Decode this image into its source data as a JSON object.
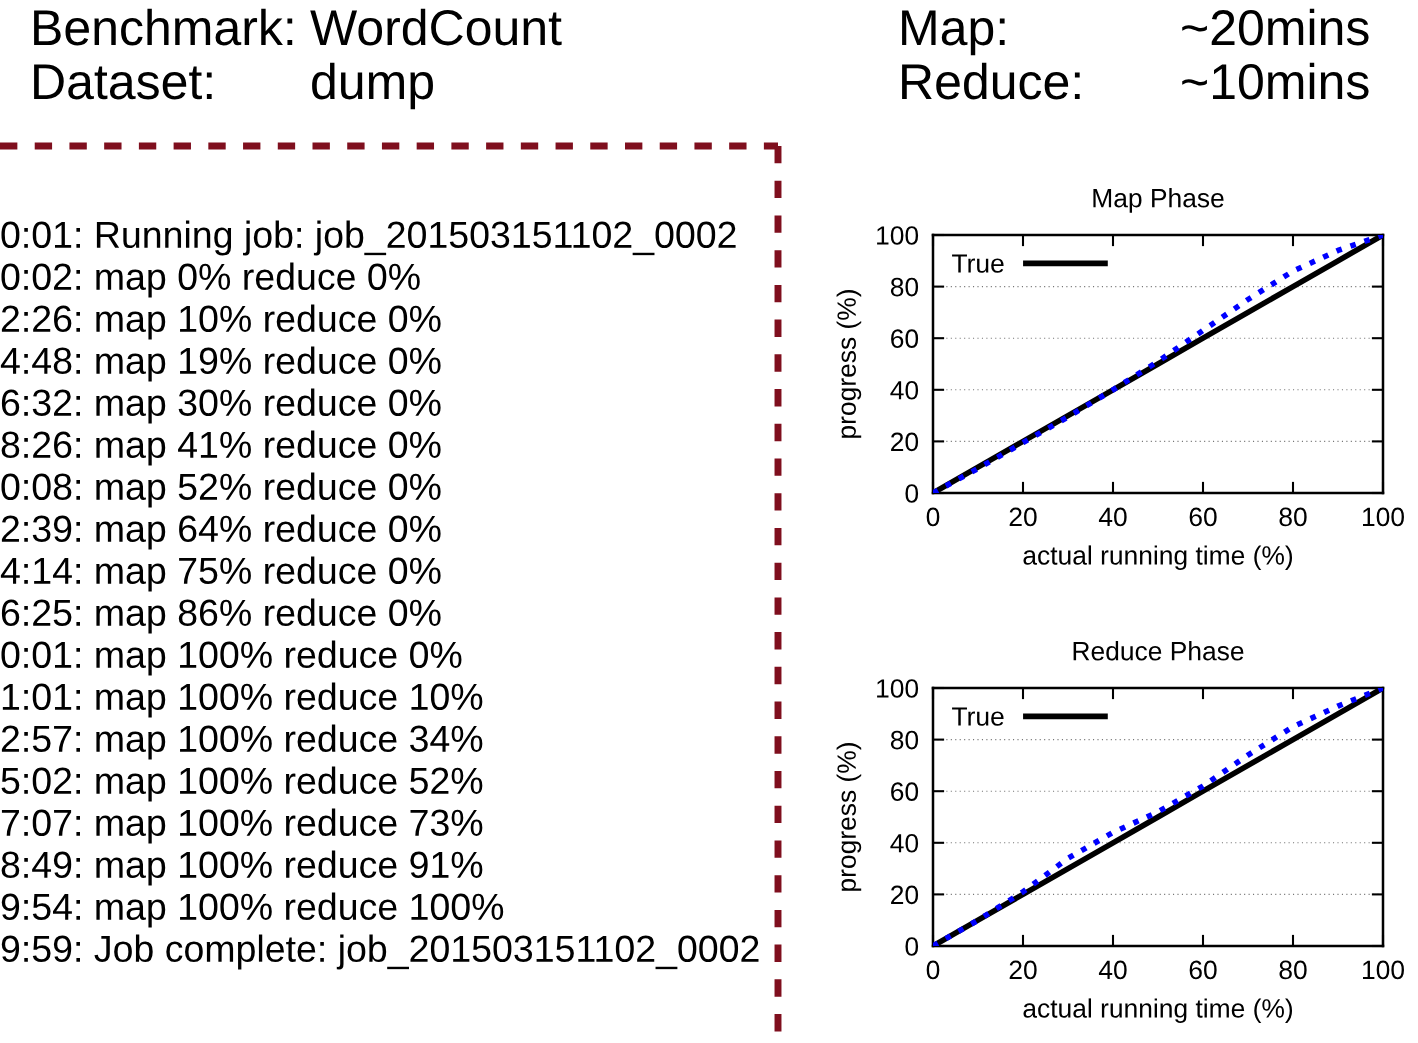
{
  "chart_data": [
    {
      "type": "other",
      "annotations": [
        "Benchmark:",
        "WordCount",
        "Map:",
        "~20mins",
        "Dataset:",
        "dump",
        "Reduce:",
        "~10mins",
        "0:01: Running job: job_201503151102_0002",
        "0:02: map 0% reduce 0%",
        "2:26: map 10% reduce 0%",
        "4:48: map 19% reduce 0%",
        "6:32: map 30% reduce 0%",
        "8:26: map 41% reduce 0%",
        "0:08: map 52% reduce 0%",
        "2:39: map 64% reduce 0%",
        "4:14: map 75% reduce 0%",
        "6:25: map 86% reduce 0%",
        "0:01: map 100% reduce 0%",
        "1:01: map 100% reduce 10%",
        "2:57: map 100% reduce 34%",
        "5:02: map 100% reduce 52%",
        "7:07: map 100% reduce 73%",
        "8:49: map 100% reduce 91%",
        "9:54: map 100% reduce 100%",
        "9:59: Job complete: job_201503151102_0002"
      ]
    },
    {
      "type": "line",
      "title": "Map Phase",
      "xlabel": "actual running time (%)",
      "ylabel": "progress (%)",
      "xlim": [
        0,
        100
      ],
      "ylim": [
        0,
        100
      ],
      "xticks": [
        0,
        20,
        40,
        60,
        80,
        100
      ],
      "yticks": [
        0,
        20,
        40,
        60,
        80,
        100
      ],
      "grid": "y",
      "legend": "top left",
      "x": [
        0,
        10,
        20,
        30,
        40,
        50,
        60,
        70,
        80,
        90,
        100
      ],
      "series": [
        {
          "name": "True",
          "color": "#000000",
          "line_style": "solid",
          "values": [
            0,
            10,
            20,
            30,
            40,
            50,
            60,
            70,
            80,
            90,
            100
          ]
        },
        {
          "color": "#0000ff",
          "line_style": "dotted",
          "values": [
            0,
            9.5,
            19.5,
            29.5,
            40,
            51,
            63,
            75,
            86,
            94,
            100
          ]
        }
      ]
    },
    {
      "type": "line",
      "title": "Reduce Phase",
      "xlabel": "actual running time (%)",
      "ylabel": "progress (%)",
      "xlim": [
        0,
        100
      ],
      "ylim": [
        0,
        100
      ],
      "xticks": [
        0,
        20,
        40,
        60,
        80,
        100
      ],
      "yticks": [
        0,
        20,
        40,
        60,
        80,
        100
      ],
      "grid": "y",
      "legend": "top left",
      "x": [
        0,
        10,
        20,
        30,
        40,
        50,
        60,
        70,
        80,
        90,
        100
      ],
      "series": [
        {
          "name": "True",
          "color": "#000000",
          "line_style": "solid",
          "values": [
            0,
            10,
            20,
            30,
            40,
            50,
            60,
            70,
            80,
            90,
            100
          ]
        },
        {
          "color": "#0000ff",
          "line_style": "dotted",
          "values": [
            0,
            10,
            21,
            34,
            44,
            52,
            62,
            74,
            85,
            93,
            100
          ]
        }
      ]
    }
  ]
}
